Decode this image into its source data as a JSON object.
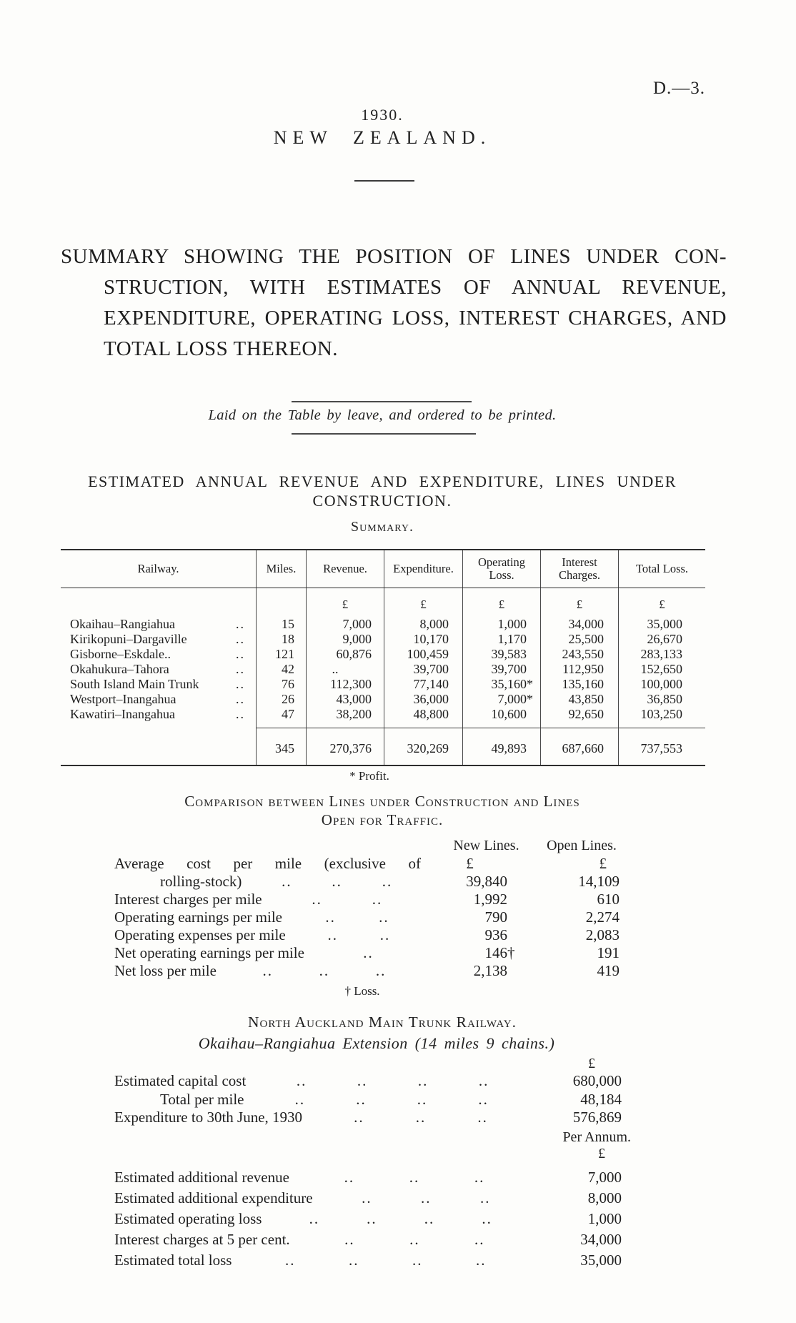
{
  "header": {
    "doc_number": "D.—3.",
    "year": "1930.",
    "country": "NEW ZEALAND."
  },
  "heading": {
    "line1": "SUMMARY SHOWING THE POSITION OF LINES UNDER CON-",
    "line2": "STRUCTION, WITH ESTIMATES OF ANNUAL REVENUE,",
    "line3": "EXPENDITURE, OPERATING LOSS, INTEREST CHARGES, AND",
    "line4": "TOTAL LOSS THEREON.",
    "laid_note": "Laid on the Table by leave, and ordered to be printed."
  },
  "section": {
    "title_line1": "ESTIMATED ANNUAL REVENUE AND EXPENDITURE, LINES UNDER",
    "title_line2": "CONSTRUCTION."
  },
  "summary_table": {
    "title": "Summary.",
    "columns": [
      "Railway.",
      "Miles.",
      "Revenue.",
      "Expenditure.",
      "Operating\nLoss.",
      "Interest\nCharges.",
      "Total Loss."
    ],
    "currency": [
      "",
      "",
      "£",
      "£",
      "£",
      "£",
      "£"
    ],
    "rows": [
      {
        "railway": "Okaihau–Rangiahua",
        "leader": "..",
        "miles": "15",
        "revenue": "7,000",
        "expenditure": "8,000",
        "operating_loss": "1,000",
        "loss_suffix": "",
        "interest_charges": "34,000",
        "total_loss": "35,000"
      },
      {
        "railway": "Kirikopuni–Dargaville",
        "leader": "..",
        "miles": "18",
        "revenue": "9,000",
        "expenditure": "10,170",
        "operating_loss": "1,170",
        "loss_suffix": "",
        "interest_charges": "25,500",
        "total_loss": "26,670"
      },
      {
        "railway": "Gisborne–Eskdale..",
        "leader": "..",
        "miles": "121",
        "revenue": "60,876",
        "expenditure": "100,459",
        "operating_loss": "39,583",
        "loss_suffix": "",
        "interest_charges": "243,550",
        "total_loss": "283,133"
      },
      {
        "railway": "Okahukura–Tahora",
        "leader": "..",
        "miles": "42",
        "revenue": "..",
        "expenditure": "39,700",
        "operating_loss": "39,700",
        "loss_suffix": "",
        "interest_charges": "112,950",
        "total_loss": "152,650"
      },
      {
        "railway": "South Island Main Trunk",
        "leader": "..",
        "miles": "76",
        "revenue": "112,300",
        "expenditure": "77,140",
        "operating_loss": "35,160",
        "loss_suffix": "*",
        "interest_charges": "135,160",
        "total_loss": "100,000"
      },
      {
        "railway": "Westport–Inangahua",
        "leader": "..",
        "miles": "26",
        "revenue": "43,000",
        "expenditure": "36,000",
        "operating_loss": "7,000",
        "loss_suffix": "*",
        "interest_charges": "43,850",
        "total_loss": "36,850"
      },
      {
        "railway": "Kawatiri–Inangahua",
        "leader": "..",
        "miles": "47",
        "revenue": "38,200",
        "expenditure": "48,800",
        "operating_loss": "10,600",
        "loss_suffix": "",
        "interest_charges": "92,650",
        "total_loss": "103,250"
      }
    ],
    "totals": {
      "miles": "345",
      "revenue": "270,376",
      "expenditure": "320,269",
      "operating_loss": "49,893",
      "interest_charges": "687,660",
      "total_loss": "737,553"
    },
    "footnote": "* Profit."
  },
  "comparison": {
    "heading_line1": "Comparison between Lines under Construction and Lines",
    "heading_line2": "Open for Traffic.",
    "col_new": "New Lines.",
    "col_open": "Open Lines.",
    "currency_new": "£",
    "currency_open": "£",
    "first_row": {
      "label_line1": "Average cost per mile (exclusive of",
      "label_line2": "rolling-stock)",
      "leaders": [
        "..",
        "..",
        ".."
      ],
      "new_lines": "39,840",
      "open_lines": "14,109"
    },
    "rows": [
      {
        "label": "Interest charges per mile",
        "leaders": [
          "..",
          ".."
        ],
        "new_lines": "1,992",
        "new_suffix": "",
        "open_lines": "610"
      },
      {
        "label": "Operating earnings per mile",
        "leaders": [
          "..",
          ".."
        ],
        "new_lines": "790",
        "new_suffix": "",
        "open_lines": "2,274"
      },
      {
        "label": "Operating expenses per mile",
        "leaders": [
          "..",
          ".."
        ],
        "new_lines": "936",
        "new_suffix": "",
        "open_lines": "2,083"
      },
      {
        "label": "Net operating earnings per mile",
        "leaders": [
          ".."
        ],
        "new_lines": "146",
        "new_suffix": "†",
        "open_lines": "191"
      },
      {
        "label": "Net loss per mile",
        "leaders": [
          "..",
          "..",
          ".."
        ],
        "new_lines": "2,138",
        "new_suffix": "",
        "open_lines": "419"
      }
    ],
    "footnote": "† Loss."
  },
  "north_auckland": {
    "title": "North Auckland Main Trunk Railway.",
    "subtitle": "Okaihau–Rangiahua Extension (14 miles 9 chains.)",
    "currency": "£",
    "capital_rows": [
      {
        "label": "Estimated capital cost",
        "indent": false,
        "leaders": [
          "..",
          "..",
          "..",
          ".."
        ],
        "value": "680,000"
      },
      {
        "label": "Total per mile",
        "indent": true,
        "leaders": [
          "..",
          "..",
          "..",
          ".."
        ],
        "value": "48,184"
      },
      {
        "label": "Expenditure to 30th June, 1930",
        "indent": false,
        "leaders": [
          "..",
          "..",
          ".."
        ],
        "value": "576,869"
      }
    ],
    "per_annum_label": "Per Annum.",
    "per_annum_currency": "£",
    "annual_rows": [
      {
        "label": "Estimated additional revenue",
        "indent": false,
        "leaders": [
          "..",
          "..",
          ".."
        ],
        "value": "7,000"
      },
      {
        "label": "Estimated additional expenditure",
        "indent": false,
        "leaders": [
          "..",
          "..",
          ".."
        ],
        "value": "8,000"
      },
      {
        "label": "Estimated operating loss",
        "indent": false,
        "leaders": [
          "..",
          "..",
          "..",
          ".."
        ],
        "value": "1,000"
      },
      {
        "label": "Interest charges at 5 per cent.",
        "indent": false,
        "leaders": [
          "..",
          "..",
          ".."
        ],
        "value": "34,000"
      },
      {
        "label": "Estimated total loss",
        "indent": false,
        "leaders": [
          "..",
          "..",
          "..",
          ".."
        ],
        "value": "35,000"
      }
    ]
  }
}
